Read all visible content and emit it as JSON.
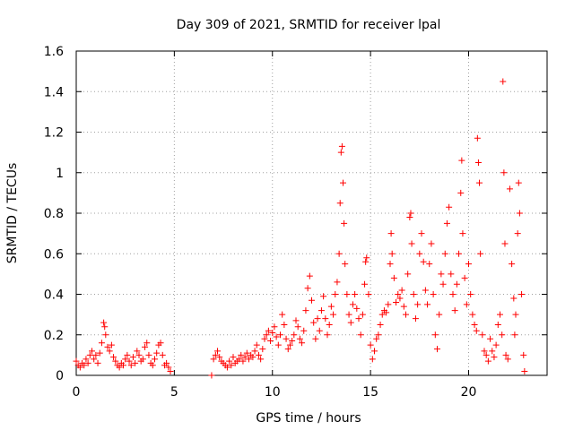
{
  "chart_data": {
    "type": "scatter",
    "title": "Day 309 of 2021, SRMTID for receiver lpal",
    "xlabel": "GPS time / hours",
    "ylabel": "SRMTID / TECUs",
    "xlim": [
      0,
      24
    ],
    "ylim": [
      0,
      1.6
    ],
    "xticks": [
      0,
      5,
      10,
      15,
      20
    ],
    "xtick_labels": [
      "0",
      "5",
      "10",
      "15",
      "20"
    ],
    "yticks": [
      0,
      0.2,
      0.4,
      0.6,
      0.8,
      1.0,
      1.2,
      1.4,
      1.6
    ],
    "ytick_labels": [
      "0",
      "0.2",
      "0.4",
      "0.6",
      "0.8",
      "1",
      "1.2",
      "1.4",
      "1.6"
    ],
    "grid": true,
    "marker": "+",
    "color": "#ff0000",
    "series": [
      {
        "name": "SRMTID",
        "points": [
          [
            0.0,
            0.07
          ],
          [
            0.1,
            0.05
          ],
          [
            0.2,
            0.04
          ],
          [
            0.3,
            0.06
          ],
          [
            0.4,
            0.05
          ],
          [
            0.5,
            0.08
          ],
          [
            0.6,
            0.06
          ],
          [
            0.7,
            0.1
          ],
          [
            0.8,
            0.12
          ],
          [
            0.9,
            0.08
          ],
          [
            1.0,
            0.1
          ],
          [
            1.1,
            0.06
          ],
          [
            1.2,
            0.11
          ],
          [
            1.3,
            0.16
          ],
          [
            1.4,
            0.26
          ],
          [
            1.45,
            0.24
          ],
          [
            1.5,
            0.2
          ],
          [
            1.6,
            0.14
          ],
          [
            1.7,
            0.12
          ],
          [
            1.8,
            0.15
          ],
          [
            1.9,
            0.09
          ],
          [
            2.0,
            0.07
          ],
          [
            2.1,
            0.05
          ],
          [
            2.2,
            0.04
          ],
          [
            2.3,
            0.06
          ],
          [
            2.4,
            0.05
          ],
          [
            2.5,
            0.08
          ],
          [
            2.6,
            0.1
          ],
          [
            2.7,
            0.07
          ],
          [
            2.8,
            0.05
          ],
          [
            2.9,
            0.09
          ],
          [
            3.0,
            0.06
          ],
          [
            3.1,
            0.12
          ],
          [
            3.2,
            0.1
          ],
          [
            3.3,
            0.07
          ],
          [
            3.4,
            0.08
          ],
          [
            3.5,
            0.14
          ],
          [
            3.6,
            0.16
          ],
          [
            3.7,
            0.1
          ],
          [
            3.8,
            0.06
          ],
          [
            3.9,
            0.05
          ],
          [
            4.0,
            0.08
          ],
          [
            4.1,
            0.11
          ],
          [
            4.2,
            0.15
          ],
          [
            4.3,
            0.16
          ],
          [
            4.4,
            0.1
          ],
          [
            4.5,
            0.05
          ],
          [
            4.6,
            0.06
          ],
          [
            4.7,
            0.04
          ],
          [
            4.8,
            0.02
          ],
          [
            6.9,
            0.0
          ],
          [
            7.0,
            0.08
          ],
          [
            7.1,
            0.1
          ],
          [
            7.2,
            0.12
          ],
          [
            7.3,
            0.09
          ],
          [
            7.4,
            0.07
          ],
          [
            7.5,
            0.06
          ],
          [
            7.6,
            0.05
          ],
          [
            7.7,
            0.04
          ],
          [
            7.8,
            0.07
          ],
          [
            7.9,
            0.05
          ],
          [
            8.0,
            0.09
          ],
          [
            8.1,
            0.06
          ],
          [
            8.2,
            0.07
          ],
          [
            8.3,
            0.08
          ],
          [
            8.4,
            0.1
          ],
          [
            8.5,
            0.07
          ],
          [
            8.6,
            0.09
          ],
          [
            8.7,
            0.11
          ],
          [
            8.8,
            0.08
          ],
          [
            8.9,
            0.1
          ],
          [
            9.0,
            0.09
          ],
          [
            9.1,
            0.12
          ],
          [
            9.2,
            0.15
          ],
          [
            9.3,
            0.1
          ],
          [
            9.4,
            0.08
          ],
          [
            9.5,
            0.13
          ],
          [
            9.6,
            0.18
          ],
          [
            9.7,
            0.2
          ],
          [
            9.8,
            0.22
          ],
          [
            9.9,
            0.17
          ],
          [
            10.0,
            0.21
          ],
          [
            10.1,
            0.24
          ],
          [
            10.2,
            0.19
          ],
          [
            10.3,
            0.15
          ],
          [
            10.4,
            0.2
          ],
          [
            10.5,
            0.3
          ],
          [
            10.6,
            0.25
          ],
          [
            10.7,
            0.18
          ],
          [
            10.8,
            0.13
          ],
          [
            10.9,
            0.15
          ],
          [
            11.0,
            0.17
          ],
          [
            11.1,
            0.2
          ],
          [
            11.2,
            0.27
          ],
          [
            11.3,
            0.24
          ],
          [
            11.4,
            0.18
          ],
          [
            11.5,
            0.16
          ],
          [
            11.6,
            0.22
          ],
          [
            11.7,
            0.32
          ],
          [
            11.8,
            0.43
          ],
          [
            11.9,
            0.49
          ],
          [
            12.0,
            0.37
          ],
          [
            12.1,
            0.26
          ],
          [
            12.2,
            0.18
          ],
          [
            12.3,
            0.28
          ],
          [
            12.4,
            0.22
          ],
          [
            12.5,
            0.32
          ],
          [
            12.6,
            0.39
          ],
          [
            12.7,
            0.28
          ],
          [
            12.8,
            0.2
          ],
          [
            12.9,
            0.25
          ],
          [
            13.0,
            0.34
          ],
          [
            13.1,
            0.3
          ],
          [
            13.2,
            0.4
          ],
          [
            13.3,
            0.46
          ],
          [
            13.4,
            0.6
          ],
          [
            13.45,
            0.85
          ],
          [
            13.5,
            1.1
          ],
          [
            13.55,
            1.13
          ],
          [
            13.6,
            0.95
          ],
          [
            13.65,
            0.75
          ],
          [
            13.7,
            0.55
          ],
          [
            13.8,
            0.4
          ],
          [
            13.9,
            0.3
          ],
          [
            14.0,
            0.26
          ],
          [
            14.1,
            0.35
          ],
          [
            14.2,
            0.4
          ],
          [
            14.3,
            0.33
          ],
          [
            14.4,
            0.28
          ],
          [
            14.5,
            0.2
          ],
          [
            14.6,
            0.3
          ],
          [
            14.7,
            0.45
          ],
          [
            14.75,
            0.56
          ],
          [
            14.8,
            0.58
          ],
          [
            14.9,
            0.4
          ],
          [
            15.0,
            0.15
          ],
          [
            15.1,
            0.08
          ],
          [
            15.2,
            0.12
          ],
          [
            15.3,
            0.18
          ],
          [
            15.4,
            0.2
          ],
          [
            15.5,
            0.25
          ],
          [
            15.6,
            0.3
          ],
          [
            15.7,
            0.32
          ],
          [
            15.8,
            0.31
          ],
          [
            15.9,
            0.35
          ],
          [
            16.0,
            0.55
          ],
          [
            16.05,
            0.7
          ],
          [
            16.1,
            0.6
          ],
          [
            16.2,
            0.48
          ],
          [
            16.3,
            0.36
          ],
          [
            16.4,
            0.4
          ],
          [
            16.5,
            0.38
          ],
          [
            16.6,
            0.42
          ],
          [
            16.7,
            0.34
          ],
          [
            16.8,
            0.3
          ],
          [
            16.9,
            0.5
          ],
          [
            17.0,
            0.78
          ],
          [
            17.05,
            0.8
          ],
          [
            17.1,
            0.65
          ],
          [
            17.2,
            0.4
          ],
          [
            17.3,
            0.28
          ],
          [
            17.4,
            0.35
          ],
          [
            17.5,
            0.6
          ],
          [
            17.6,
            0.7
          ],
          [
            17.7,
            0.56
          ],
          [
            17.8,
            0.42
          ],
          [
            17.9,
            0.35
          ],
          [
            18.0,
            0.55
          ],
          [
            18.1,
            0.65
          ],
          [
            18.2,
            0.4
          ],
          [
            18.3,
            0.2
          ],
          [
            18.4,
            0.13
          ],
          [
            18.5,
            0.3
          ],
          [
            18.6,
            0.5
          ],
          [
            18.7,
            0.45
          ],
          [
            18.8,
            0.6
          ],
          [
            18.9,
            0.75
          ],
          [
            19.0,
            0.83
          ],
          [
            19.1,
            0.5
          ],
          [
            19.2,
            0.4
          ],
          [
            19.3,
            0.32
          ],
          [
            19.4,
            0.45
          ],
          [
            19.5,
            0.6
          ],
          [
            19.6,
            0.9
          ],
          [
            19.65,
            1.06
          ],
          [
            19.7,
            0.7
          ],
          [
            19.8,
            0.48
          ],
          [
            19.9,
            0.35
          ],
          [
            20.0,
            0.55
          ],
          [
            20.1,
            0.4
          ],
          [
            20.2,
            0.3
          ],
          [
            20.3,
            0.25
          ],
          [
            20.4,
            0.22
          ],
          [
            20.45,
            1.17
          ],
          [
            20.5,
            1.05
          ],
          [
            20.55,
            0.95
          ],
          [
            20.6,
            0.6
          ],
          [
            20.7,
            0.2
          ],
          [
            20.8,
            0.12
          ],
          [
            20.9,
            0.1
          ],
          [
            21.0,
            0.07
          ],
          [
            21.1,
            0.18
          ],
          [
            21.2,
            0.12
          ],
          [
            21.3,
            0.09
          ],
          [
            21.4,
            0.15
          ],
          [
            21.5,
            0.25
          ],
          [
            21.6,
            0.3
          ],
          [
            21.7,
            0.2
          ],
          [
            21.75,
            1.45
          ],
          [
            21.8,
            1.0
          ],
          [
            21.85,
            0.65
          ],
          [
            21.9,
            0.1
          ],
          [
            22.0,
            0.08
          ],
          [
            22.1,
            0.92
          ],
          [
            22.2,
            0.55
          ],
          [
            22.3,
            0.38
          ],
          [
            22.35,
            0.2
          ],
          [
            22.4,
            0.3
          ],
          [
            22.5,
            0.7
          ],
          [
            22.55,
            0.95
          ],
          [
            22.6,
            0.8
          ],
          [
            22.7,
            0.4
          ],
          [
            22.8,
            0.1
          ],
          [
            22.85,
            0.02
          ]
        ]
      }
    ]
  }
}
